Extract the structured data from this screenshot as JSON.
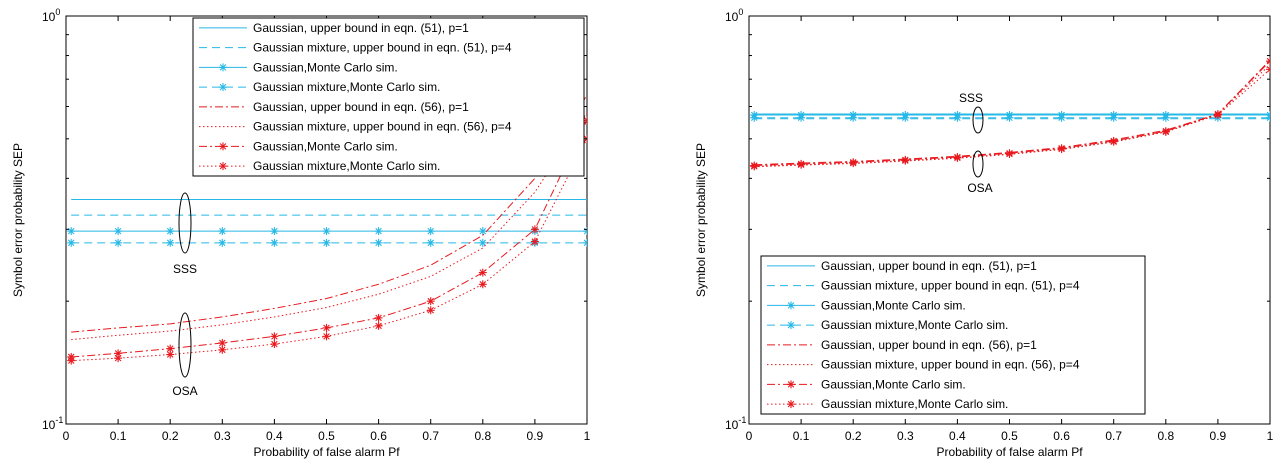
{
  "colors": {
    "cyan": "#26b8e6",
    "red": "#e8191e",
    "axis": "#000000",
    "background": "#ffffff"
  },
  "legend_labels": [
    "Gaussian, upper bound in eqn. (51), p=1",
    "Gaussian mixture, upper bound in eqn. (51), p=4",
    "Gaussian,Monte Carlo sim.",
    "Gaussian mixture,Monte Carlo sim.",
    "Gaussian, upper bound in eqn. (56), p=1",
    "Gaussian mixture, upper bound in eqn. (56), p=4",
    "Gaussian,Monte Carlo sim.",
    "Gaussian mixture,Monte Carlo sim."
  ],
  "chart_data": [
    {
      "type": "line",
      "title": "",
      "xlabel": "Probability of false alarm Pf",
      "ylabel": "Symbol error probability SEP",
      "y_scale": "log",
      "xlim": [
        0,
        1
      ],
      "ylim": [
        0.1,
        1
      ],
      "x_ticks": [
        "0",
        "0.1",
        "0.2",
        "0.3",
        "0.4",
        "0.5",
        "0.6",
        "0.7",
        "0.8",
        "0.9",
        "1"
      ],
      "y_ticks": [
        {
          "base": "10",
          "exp": "-1"
        },
        {
          "base": "10",
          "exp": "0"
        }
      ],
      "grid": false,
      "legend_position": "top-right",
      "annotations": [
        "SSS",
        "OSA"
      ],
      "x": [
        0.01,
        0.1,
        0.2,
        0.3,
        0.4,
        0.5,
        0.6,
        0.7,
        0.8,
        0.9,
        1.0
      ],
      "series": [
        {
          "color": "cyan",
          "style": "solid",
          "marker": "none",
          "name": "Gaussian, upper bound in eqn. (51), p=1",
          "values": [
            0.355,
            0.355,
            0.355,
            0.355,
            0.355,
            0.355,
            0.355,
            0.355,
            0.355,
            0.355,
            0.355
          ]
        },
        {
          "color": "cyan",
          "style": "dashed",
          "marker": "none",
          "name": "Gaussian mixture, upper bound in eqn. (51), p=4",
          "values": [
            0.325,
            0.325,
            0.325,
            0.325,
            0.325,
            0.325,
            0.325,
            0.325,
            0.325,
            0.325,
            0.325
          ]
        },
        {
          "color": "cyan",
          "style": "solid",
          "marker": "star",
          "name": "Gaussian,Monte Carlo sim.",
          "values": [
            0.297,
            0.297,
            0.297,
            0.297,
            0.297,
            0.297,
            0.297,
            0.297,
            0.297,
            0.297,
            0.297
          ]
        },
        {
          "color": "cyan",
          "style": "dashed",
          "marker": "star",
          "name": "Gaussian mixture,Monte Carlo sim.",
          "values": [
            0.278,
            0.278,
            0.278,
            0.278,
            0.278,
            0.278,
            0.278,
            0.278,
            0.278,
            0.278,
            0.278
          ]
        },
        {
          "color": "red",
          "style": "dashdot",
          "marker": "none",
          "name": "Gaussian, upper bound in eqn. (56), p=1",
          "values": [
            0.168,
            0.172,
            0.176,
            0.183,
            0.192,
            0.203,
            0.22,
            0.245,
            0.29,
            0.4,
            0.64
          ]
        },
        {
          "color": "red",
          "style": "dotted",
          "marker": "none",
          "name": "Gaussian mixture, upper bound in eqn. (56), p=4",
          "values": [
            0.161,
            0.165,
            0.169,
            0.175,
            0.183,
            0.193,
            0.208,
            0.23,
            0.27,
            0.37,
            0.58
          ]
        },
        {
          "color": "red",
          "style": "dashdot",
          "marker": "star",
          "name": "Gaussian,Monte Carlo sim.",
          "values": [
            0.146,
            0.149,
            0.153,
            0.158,
            0.164,
            0.172,
            0.182,
            0.2,
            0.235,
            0.3,
            0.555
          ]
        },
        {
          "color": "red",
          "style": "dotted",
          "marker": "star",
          "name": "Gaussian mixture,Monte Carlo sim.",
          "values": [
            0.143,
            0.145,
            0.148,
            0.152,
            0.157,
            0.164,
            0.174,
            0.19,
            0.22,
            0.28,
            0.5
          ]
        }
      ]
    },
    {
      "type": "line",
      "title": "",
      "xlabel": "Probability of false alarm Pf",
      "ylabel": "Symbol error probability SEP",
      "y_scale": "log",
      "xlim": [
        0,
        1
      ],
      "ylim": [
        0.1,
        1
      ],
      "x_ticks": [
        "0",
        "0.1",
        "0.2",
        "0.3",
        "0.4",
        "0.5",
        "0.6",
        "0.7",
        "0.8",
        "0.9",
        "1"
      ],
      "y_ticks": [
        {
          "base": "10",
          "exp": "-1"
        },
        {
          "base": "10",
          "exp": "0"
        }
      ],
      "grid": false,
      "legend_position": "bottom-left",
      "annotations": [
        "SSS",
        "OSA"
      ],
      "x": [
        0.01,
        0.1,
        0.2,
        0.3,
        0.4,
        0.5,
        0.6,
        0.7,
        0.8,
        0.9,
        1.0
      ],
      "series": [
        {
          "color": "cyan",
          "style": "solid",
          "marker": "none",
          "name": "Gaussian, upper bound in eqn. (51), p=1",
          "values": [
            0.575,
            0.575,
            0.575,
            0.575,
            0.575,
            0.575,
            0.575,
            0.575,
            0.575,
            0.575,
            0.575
          ]
        },
        {
          "color": "cyan",
          "style": "dashed",
          "marker": "none",
          "name": "Gaussian mixture, upper bound in eqn. (51), p=4",
          "values": [
            0.56,
            0.56,
            0.56,
            0.56,
            0.56,
            0.56,
            0.56,
            0.56,
            0.56,
            0.56,
            0.56
          ]
        },
        {
          "color": "cyan",
          "style": "solid",
          "marker": "star",
          "name": "Gaussian,Monte Carlo sim.",
          "values": [
            0.572,
            0.572,
            0.572,
            0.572,
            0.572,
            0.572,
            0.572,
            0.572,
            0.572,
            0.572,
            0.572
          ]
        },
        {
          "color": "cyan",
          "style": "dashed",
          "marker": "star",
          "name": "Gaussian mixture,Monte Carlo sim.",
          "values": [
            0.563,
            0.563,
            0.563,
            0.563,
            0.563,
            0.563,
            0.563,
            0.563,
            0.563,
            0.563,
            0.563
          ]
        },
        {
          "color": "red",
          "style": "dashdot",
          "marker": "none",
          "name": "Gaussian, upper bound in eqn. (56), p=1",
          "values": [
            0.432,
            0.436,
            0.44,
            0.446,
            0.453,
            0.463,
            0.476,
            0.497,
            0.525,
            0.575,
            0.78
          ]
        },
        {
          "color": "red",
          "style": "dotted",
          "marker": "none",
          "name": "Gaussian mixture, upper bound in eqn. (56), p=4",
          "values": [
            0.427,
            0.431,
            0.435,
            0.441,
            0.448,
            0.458,
            0.471,
            0.491,
            0.52,
            0.575,
            0.76
          ]
        },
        {
          "color": "red",
          "style": "dashdot",
          "marker": "star",
          "name": "Gaussian,Monte Carlo sim.",
          "values": [
            0.43,
            0.434,
            0.438,
            0.444,
            0.451,
            0.461,
            0.474,
            0.494,
            0.522,
            0.575,
            0.775
          ]
        },
        {
          "color": "red",
          "style": "dotted",
          "marker": "star",
          "name": "Gaussian mixture,Monte Carlo sim.",
          "values": [
            0.428,
            0.432,
            0.436,
            0.442,
            0.449,
            0.459,
            0.472,
            0.492,
            0.52,
            0.572,
            0.74
          ]
        }
      ]
    }
  ]
}
